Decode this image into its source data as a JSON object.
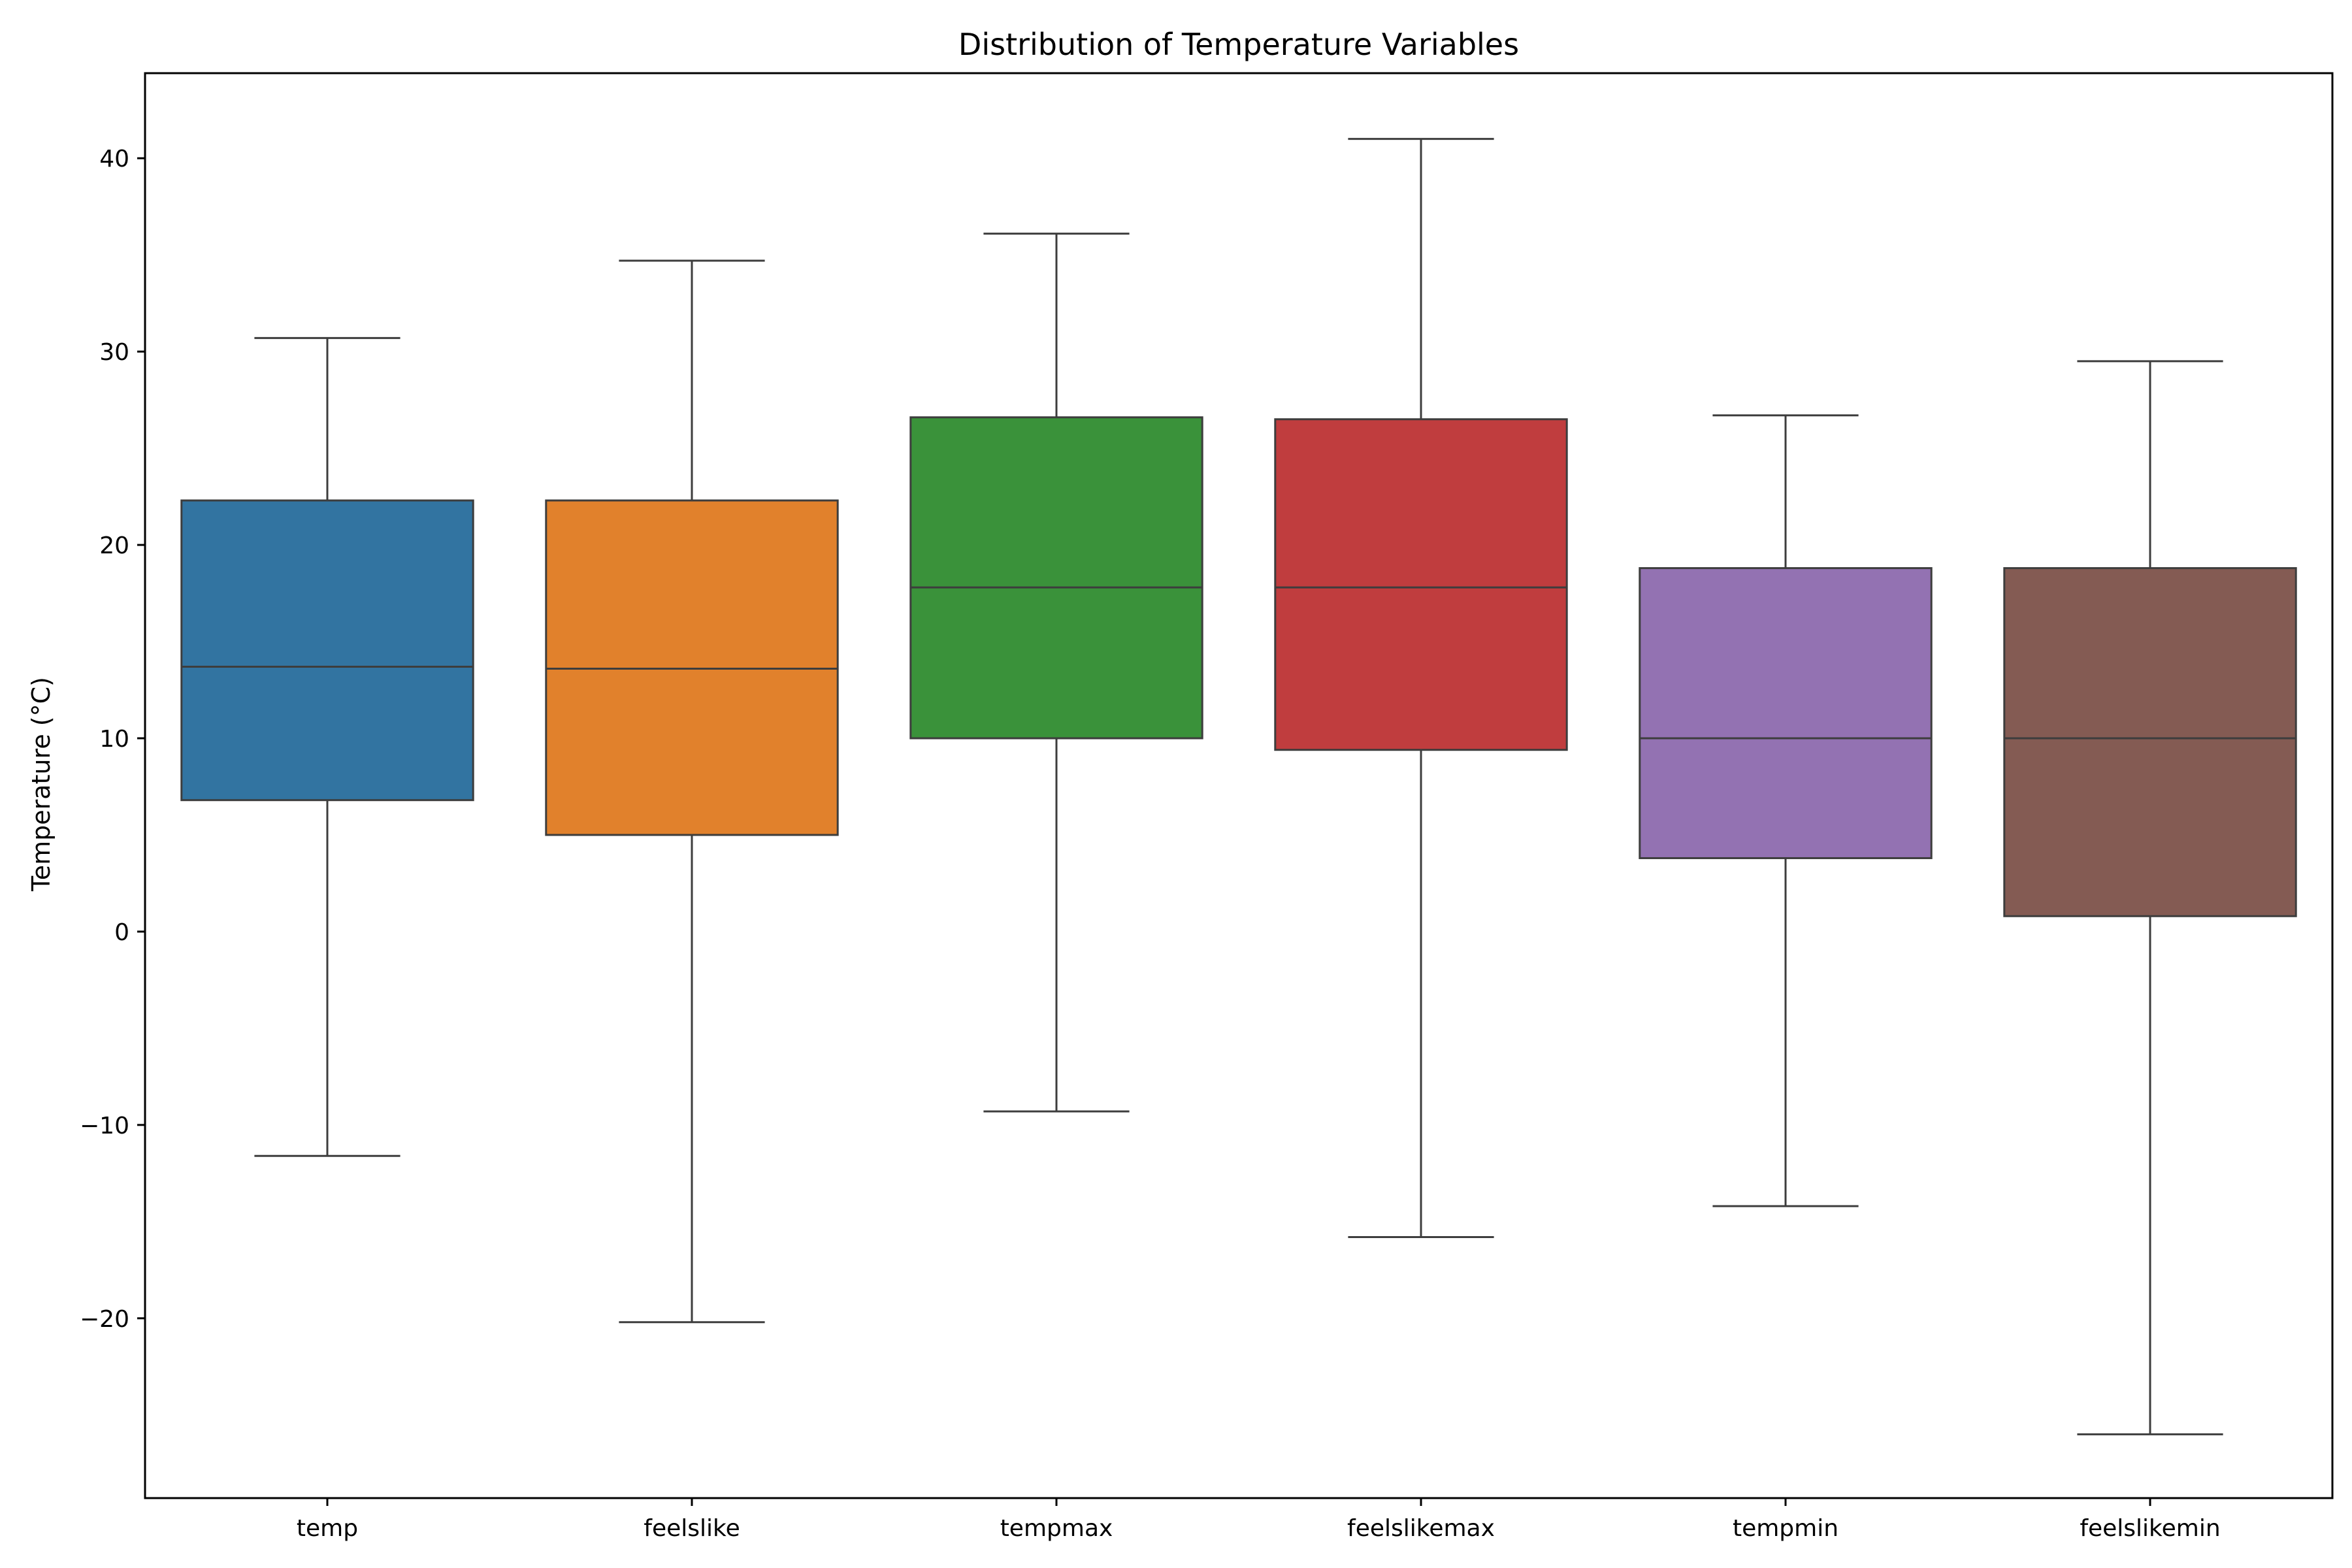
{
  "chart_data": {
    "type": "box",
    "title": "Distribution of Temperature Variables",
    "xlabel": "",
    "ylabel": "Temperature (°C)",
    "ylim": [
      -29.3,
      44.4
    ],
    "yticks": [
      -20,
      -10,
      0,
      10,
      20,
      30,
      40
    ],
    "ytick_labels": [
      "−20",
      "−10",
      "0",
      "10",
      "20",
      "30",
      "40"
    ],
    "grid": false,
    "categories": [
      "temp",
      "feelslike",
      "tempmax",
      "feelslikemax",
      "tempmin",
      "feelslikemin"
    ],
    "boxes": [
      {
        "category": "temp",
        "whislo": -11.6,
        "q1": 6.8,
        "median": 13.7,
        "q3": 22.3,
        "whishi": 30.7
      },
      {
        "category": "feelslike",
        "whislo": -20.2,
        "q1": 5.0,
        "median": 13.6,
        "q3": 22.3,
        "whishi": 34.7
      },
      {
        "category": "tempmax",
        "whislo": -9.3,
        "q1": 10.0,
        "median": 17.8,
        "q3": 26.6,
        "whishi": 36.1
      },
      {
        "category": "feelslikemax",
        "whislo": -15.8,
        "q1": 9.4,
        "median": 17.8,
        "q3": 26.5,
        "whishi": 41.0
      },
      {
        "category": "tempmin",
        "whislo": -14.2,
        "q1": 3.8,
        "median": 10.0,
        "q3": 18.8,
        "whishi": 26.7
      },
      {
        "category": "feelslikemin",
        "whislo": -26.0,
        "q1": 0.8,
        "median": 10.0,
        "q3": 18.8,
        "whishi": 29.5
      }
    ],
    "colors": [
      "#3274a1",
      "#e1812c",
      "#3a923a",
      "#c03d3e",
      "#9372b2",
      "#845b53"
    ],
    "line_color": "#3d3d3d"
  }
}
